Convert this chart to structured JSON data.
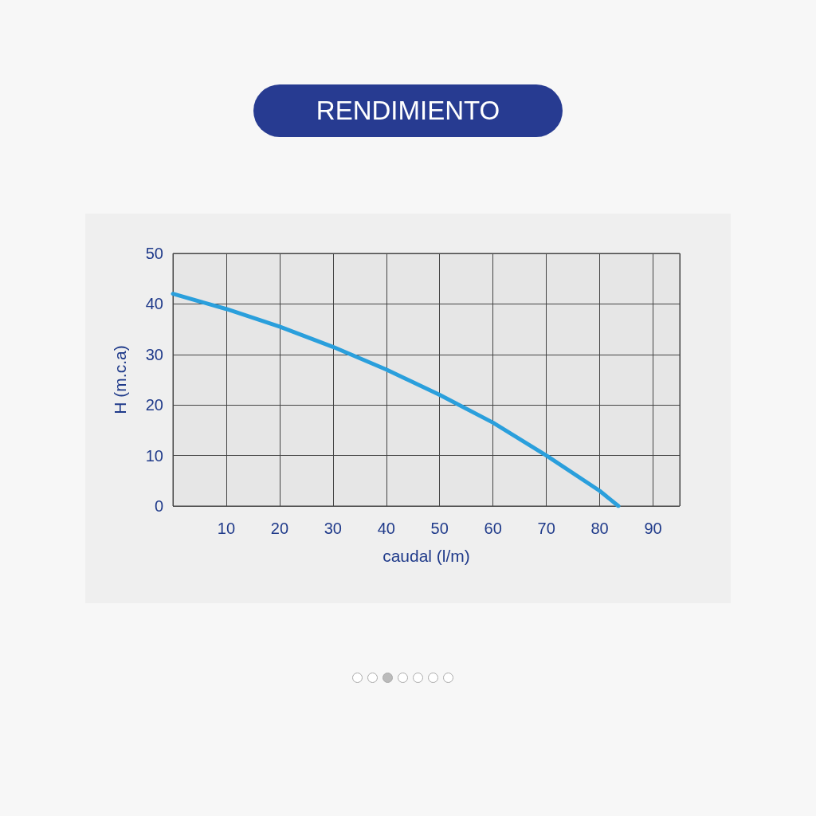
{
  "chart_data": {
    "type": "line",
    "title": "RENDIMIENTO",
    "xlabel": "caudal (l/m)",
    "ylabel": "H (m.c.a)",
    "x": [
      0,
      10,
      20,
      30,
      40,
      50,
      60,
      70,
      80,
      83.5
    ],
    "series": [
      {
        "color": "#2a9fdc",
        "values": [
          42,
          39,
          35.5,
          31.5,
          27,
          22,
          16.5,
          10,
          3,
          0
        ]
      }
    ],
    "xlim": [
      0,
      95
    ],
    "xticks": [
      10,
      20,
      30,
      40,
      50,
      60,
      70,
      80,
      90
    ],
    "ylim": [
      0,
      50
    ],
    "yticks": [
      0,
      10,
      20,
      30,
      40,
      50
    ],
    "grid": true,
    "marker": "none",
    "line_style": "solid"
  }
}
